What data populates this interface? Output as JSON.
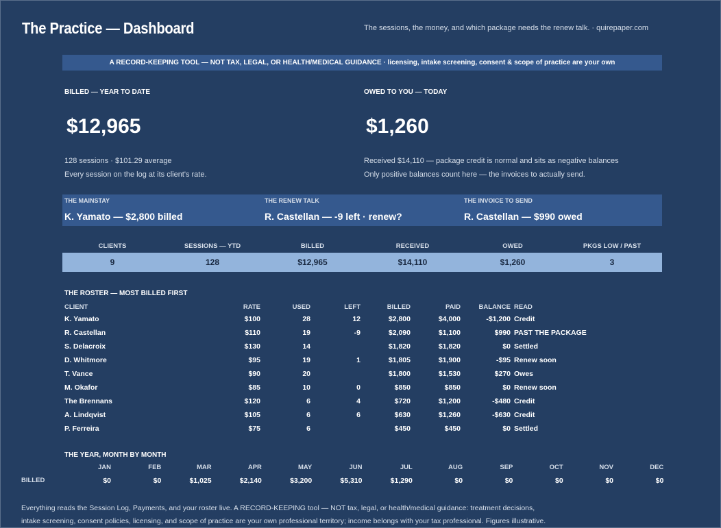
{
  "header": {
    "title": "The Practice — Dashboard",
    "tagline": "The sessions, the money, and which package needs the renew talk.  ·  quirepaper.com"
  },
  "banner": "A RECORD-KEEPING TOOL — NOT TAX, LEGAL, OR HEALTH/MEDICAL GUIDANCE  ·  licensing, intake screening, consent & scope of practice are your own",
  "billed_ytd": {
    "label": "BILLED — YEAR TO DATE",
    "value": "$12,965",
    "line1": "128 sessions  ·  $101.29 average",
    "line2": "Every session on the log at its client's rate."
  },
  "owed_today": {
    "label": "OWED TO YOU — TODAY",
    "value": "$1,260",
    "line1": "Received $14,110 — package credit is normal and sits as negative balances",
    "line2": "Only positive balances count here — the invoices to actually send."
  },
  "highlights": [
    {
      "label": "THE MAINSTAY",
      "value": "K. Yamato — $2,800 billed"
    },
    {
      "label": "THE RENEW TALK",
      "value": "R. Castellan — -9 left · renew?"
    },
    {
      "label": "THE INVOICE TO SEND",
      "value": "R. Castellan — $990 owed"
    }
  ],
  "kpis": [
    {
      "label": "CLIENTS",
      "value": "9"
    },
    {
      "label": "SESSIONS — YTD",
      "value": "128"
    },
    {
      "label": "BILLED",
      "value": "$12,965"
    },
    {
      "label": "RECEIVED",
      "value": "$14,110"
    },
    {
      "label": "OWED",
      "value": "$1,260"
    },
    {
      "label": "PKGS LOW / PAST",
      "value": "3"
    }
  ],
  "roster": {
    "title": "THE ROSTER — MOST BILLED FIRST",
    "columns": {
      "client": "CLIENT",
      "rate": "RATE",
      "used": "USED",
      "left": "LEFT",
      "billed": "BILLED",
      "paid": "PAID",
      "balance": "BALANCE",
      "read": "READ"
    },
    "rows": [
      {
        "client": "K. Yamato",
        "rate": "$100",
        "used": "28",
        "left": "12",
        "billed": "$2,800",
        "paid": "$4,000",
        "balance": "-$1,200",
        "read": "Credit"
      },
      {
        "client": "R. Castellan",
        "rate": "$110",
        "used": "19",
        "left": "-9",
        "billed": "$2,090",
        "paid": "$1,100",
        "balance": "$990",
        "read": "PAST THE PACKAGE"
      },
      {
        "client": "S. Delacroix",
        "rate": "$130",
        "used": "14",
        "left": "",
        "billed": "$1,820",
        "paid": "$1,820",
        "balance": "$0",
        "read": "Settled"
      },
      {
        "client": "D. Whitmore",
        "rate": "$95",
        "used": "19",
        "left": "1",
        "billed": "$1,805",
        "paid": "$1,900",
        "balance": "-$95",
        "read": "Renew soon"
      },
      {
        "client": "T. Vance",
        "rate": "$90",
        "used": "20",
        "left": "",
        "billed": "$1,800",
        "paid": "$1,530",
        "balance": "$270",
        "read": "Owes"
      },
      {
        "client": "M. Okafor",
        "rate": "$85",
        "used": "10",
        "left": "0",
        "billed": "$850",
        "paid": "$850",
        "balance": "$0",
        "read": "Renew soon"
      },
      {
        "client": "The Brennans",
        "rate": "$120",
        "used": "6",
        "left": "4",
        "billed": "$720",
        "paid": "$1,200",
        "balance": "-$480",
        "read": "Credit"
      },
      {
        "client": "A. Lindqvist",
        "rate": "$105",
        "used": "6",
        "left": "6",
        "billed": "$630",
        "paid": "$1,260",
        "balance": "-$630",
        "read": "Credit"
      },
      {
        "client": "P. Ferreira",
        "rate": "$75",
        "used": "6",
        "left": "",
        "billed": "$450",
        "paid": "$450",
        "balance": "$0",
        "read": "Settled"
      }
    ]
  },
  "year": {
    "title": "THE YEAR, MONTH BY MONTH",
    "row_label": "BILLED",
    "months": [
      "JAN",
      "FEB",
      "MAR",
      "APR",
      "MAY",
      "JUN",
      "JUL",
      "AUG",
      "SEP",
      "OCT",
      "NOV",
      "DEC"
    ],
    "values": [
      "$0",
      "$0",
      "$1,025",
      "$2,140",
      "$3,200",
      "$5,310",
      "$1,290",
      "$0",
      "$0",
      "$0",
      "$0",
      "$0"
    ]
  },
  "footer": {
    "line1": "Everything reads the Session Log, Payments, and your roster live. A RECORD-KEEPING tool — NOT tax, legal, or health/medical guidance: treatment decisions,",
    "line2": "intake screening, consent policies, licensing, and scope of practice are your own professional territory; income belongs with your tax professional. Figures illustrative."
  }
}
